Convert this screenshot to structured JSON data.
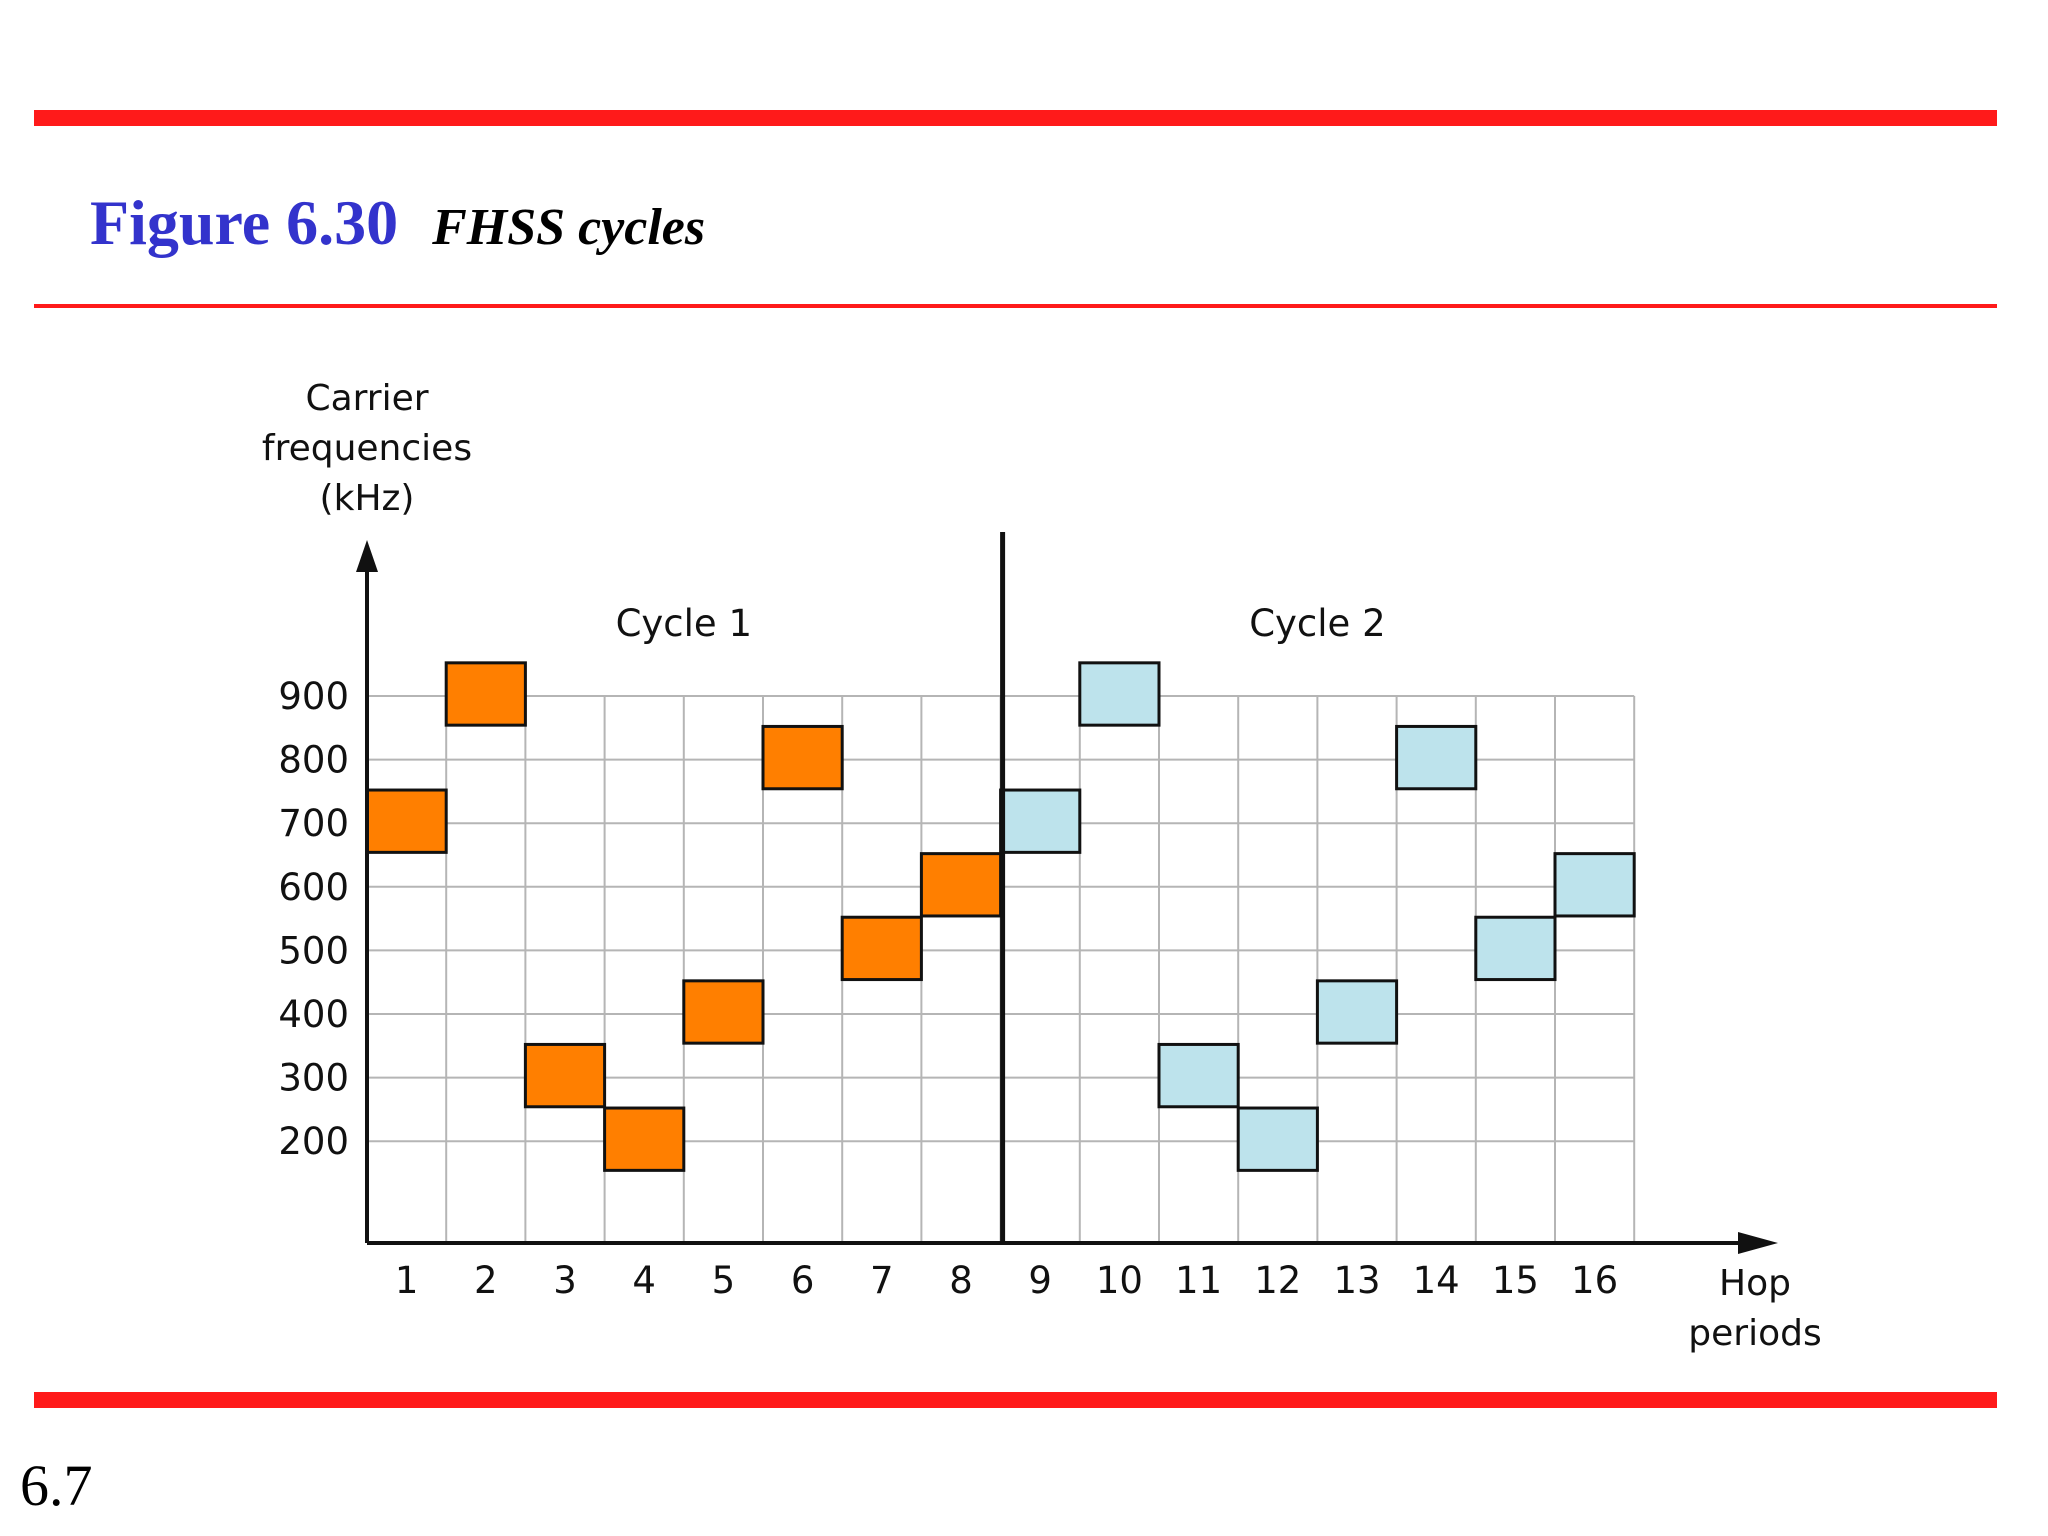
{
  "figure": {
    "number": "Figure 6.30",
    "caption": "FHSS cycles"
  },
  "slide_number": "6.7",
  "colors": {
    "rule": "#ff1a1a",
    "figure_number": "#3333cc",
    "cycle1": "#ff7f00",
    "cycle2": "#bde3ec",
    "grid": "#b5b5b5"
  },
  "chart_data": {
    "type": "scatter",
    "ylabel": [
      "Carrier",
      "frequencies",
      "(kHz)"
    ],
    "xlabel": [
      "Hop",
      "periods"
    ],
    "x_ticks": [
      1,
      2,
      3,
      4,
      5,
      6,
      7,
      8,
      9,
      10,
      11,
      12,
      13,
      14,
      15,
      16
    ],
    "y_ticks": [
      200,
      300,
      400,
      500,
      600,
      700,
      800,
      900
    ],
    "xlim": [
      0.5,
      16.5
    ],
    "ylim": [
      40,
      900
    ],
    "grid": true,
    "cycle_divider_after_period": 8,
    "cycles": [
      {
        "name": "Cycle 1",
        "periods": [
          1,
          2,
          3,
          4,
          5,
          6,
          7,
          8
        ],
        "frequencies": [
          700,
          900,
          300,
          200,
          400,
          800,
          500,
          600
        ]
      },
      {
        "name": "Cycle 2",
        "periods": [
          9,
          10,
          11,
          12,
          13,
          14,
          15,
          16
        ],
        "frequencies": [
          700,
          900,
          300,
          200,
          400,
          800,
          500,
          600
        ]
      }
    ]
  }
}
